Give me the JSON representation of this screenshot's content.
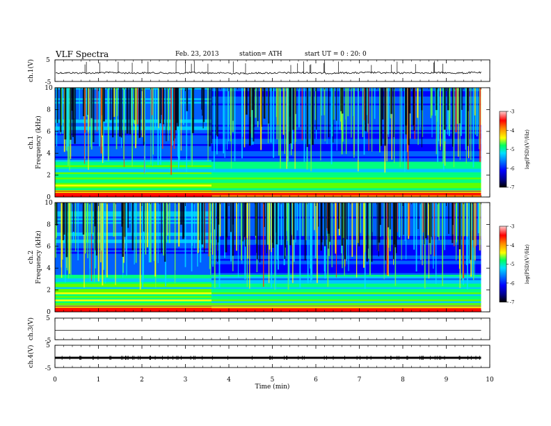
{
  "header": {
    "title": "VLF Spectra",
    "date": "Feb. 23, 2013",
    "station": "station= ATH",
    "start": "start UT = 0 : 20: 0"
  },
  "chart_data": [
    {
      "type": "line",
      "panel": "ch1",
      "ylabel": "ch.1(V)",
      "ylim": [
        -5,
        5
      ],
      "y_ticks": [
        "5",
        "-5"
      ],
      "x": [
        0.0,
        0.5,
        1.0,
        1.5,
        2.0,
        2.5,
        3.0,
        3.5,
        4.0,
        4.5,
        5.0,
        5.5,
        6.0,
        6.5,
        7.0,
        7.5,
        8.0,
        8.5,
        9.0,
        9.5,
        9.8
      ],
      "values": [
        -0.1,
        -0.2,
        0.1,
        -0.2,
        -0.1,
        -0.3,
        0.0,
        -0.2,
        -0.4,
        -0.2,
        -0.1,
        0.0,
        -0.3,
        -0.1,
        0.1,
        -0.2,
        -0.1,
        0.0,
        -0.2,
        0.1,
        0.0
      ]
    },
    {
      "type": "heatmap",
      "panel": "ch2",
      "ylabel": "ch.1 Frequency (kHz)",
      "ylim": [
        0,
        10
      ],
      "y_ticks": [
        "10",
        "8",
        "6",
        "4",
        "2",
        "0"
      ],
      "colorbar": {
        "label": "log(PSD)(V²/Hz)",
        "range": [
          -7,
          -3
        ],
        "ticks": [
          "-3",
          "-4",
          "-5",
          "-6",
          "-7"
        ]
      }
    },
    {
      "type": "heatmap",
      "panel": "ch2",
      "ylabel": "ch.2 Frequency (kHz)",
      "ylim": [
        0,
        10
      ],
      "y_ticks": [
        "10",
        "8",
        "6",
        "4",
        "2",
        "0"
      ],
      "colorbar": {
        "label": "log(PSD)(V²/Hz)",
        "range": [
          -7,
          -3
        ],
        "ticks": [
          "-3",
          "-4",
          "-5",
          "-6",
          "-7"
        ]
      }
    },
    {
      "type": "line",
      "panel": "ch3",
      "ylabel": "ch.3(V)",
      "ylim": [
        -5,
        5
      ],
      "y_ticks": [
        "5",
        "-5"
      ],
      "values": [
        0,
        0
      ]
    },
    {
      "type": "line",
      "panel": "ch4",
      "ylabel": "ch.4(V)",
      "ylim": [
        -5,
        5
      ],
      "y_ticks": [
        "5",
        "-5"
      ],
      "values": [
        0,
        0
      ]
    }
  ],
  "x_axis": {
    "label": "Time (min)",
    "xlim": [
      0,
      10
    ],
    "ticks": [
      "0",
      "1",
      "2",
      "3",
      "4",
      "5",
      "6",
      "7",
      "8",
      "9",
      "10"
    ],
    "data_end": 9.8
  },
  "colors": {
    "heat": [
      "#000000",
      "#00008b",
      "#0000ff",
      "#0060ff",
      "#00c8ff",
      "#00ff80",
      "#60ff00",
      "#ffff00",
      "#ff8000",
      "#ff0000",
      "#ffc0c0"
    ]
  }
}
